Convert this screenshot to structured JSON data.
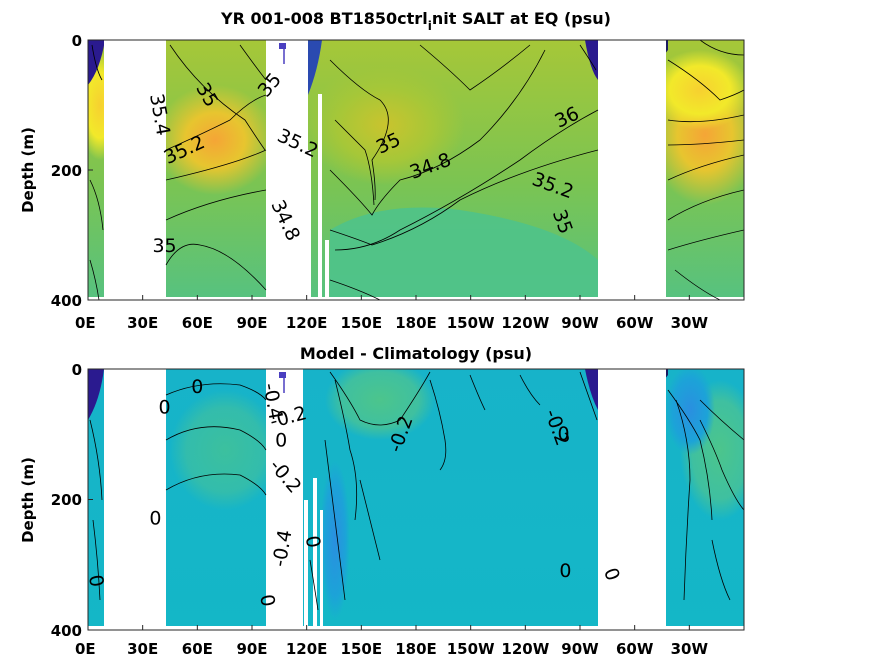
{
  "chart_data": [
    {
      "type": "heatmap",
      "title": "YR 001-008 BT1850ctrl",
      "title_sub": "i",
      "title_end": "nit SALT at EQ (psu)",
      "ylabel": "Depth (m)",
      "xlim": [
        0,
        360
      ],
      "ylim": [
        400,
        0
      ],
      "x_ticks": [
        "0E",
        "30E",
        "60E",
        "90E",
        "120E",
        "150E",
        "180E",
        "150W",
        "120W",
        "90W",
        "60W",
        "30W"
      ],
      "x_tick_values": [
        0,
        30,
        60,
        90,
        120,
        150,
        180,
        210,
        240,
        270,
        300,
        330
      ],
      "y_ticks": [
        "0",
        "200",
        "400"
      ],
      "y_tick_values": [
        0,
        200,
        400
      ],
      "contour_labels": [
        {
          "text": "35.4",
          "lon": 39,
          "depth": 115,
          "rot": 80
        },
        {
          "text": "35",
          "lon": 65,
          "depth": 85,
          "rot": 60
        },
        {
          "text": "35.2",
          "lon": 53,
          "depth": 170,
          "rot": -25
        },
        {
          "text": "35",
          "lon": 42,
          "depth": 318,
          "rot": 0
        },
        {
          "text": "35",
          "lon": 100,
          "depth": 70,
          "rot": -50
        },
        {
          "text": "35.2",
          "lon": 115,
          "depth": 160,
          "rot": 25
        },
        {
          "text": "35",
          "lon": 165,
          "depth": 160,
          "rot": -25
        },
        {
          "text": "34.8",
          "lon": 188,
          "depth": 195,
          "rot": -20
        },
        {
          "text": "34.8",
          "lon": 108,
          "depth": 278,
          "rot": 65
        },
        {
          "text": "36",
          "lon": 263,
          "depth": 120,
          "rot": -25
        },
        {
          "text": "35.2",
          "lon": 255,
          "depth": 225,
          "rot": 20
        },
        {
          "text": "35",
          "lon": 260,
          "depth": 280,
          "rot": 70
        }
      ]
    },
    {
      "type": "heatmap",
      "title": "Model - Climatology (psu)",
      "ylabel": "Depth (m)",
      "xlim": [
        0,
        360
      ],
      "ylim": [
        400,
        0
      ],
      "x_ticks": [
        "0E",
        "30E",
        "60E",
        "90E",
        "120E",
        "150E",
        "180E",
        "150W",
        "120W",
        "90W",
        "60W",
        "30W"
      ],
      "x_tick_values": [
        0,
        30,
        60,
        90,
        120,
        150,
        180,
        210,
        240,
        270,
        300,
        330
      ],
      "y_ticks": [
        "0",
        "200",
        "400"
      ],
      "y_tick_values": [
        0,
        200,
        400
      ],
      "contour_labels": [
        {
          "text": "0",
          "lon": 60,
          "depth": 28,
          "rot": 0
        },
        {
          "text": "0",
          "lon": 42,
          "depth": 60,
          "rot": 0
        },
        {
          "text": "0",
          "lon": 37,
          "depth": 230,
          "rot": 0
        },
        {
          "text": "0",
          "lon": 4,
          "depth": 325,
          "rot": 80
        },
        {
          "text": "-0.4",
          "lon": 101,
          "depth": 50,
          "rot": 80
        },
        {
          "text": "-0.2",
          "lon": 110,
          "depth": 75,
          "rot": -15
        },
        {
          "text": "0",
          "lon": 106,
          "depth": 110,
          "rot": 0
        },
        {
          "text": "-0.2",
          "lon": 108,
          "depth": 165,
          "rot": 50
        },
        {
          "text": "-0.4",
          "lon": 107,
          "depth": 275,
          "rot": -80
        },
        {
          "text": "0",
          "lon": 123,
          "depth": 265,
          "rot": 80
        },
        {
          "text": "0",
          "lon": 98,
          "depth": 355,
          "rot": 80
        },
        {
          "text": "-0.2",
          "lon": 172,
          "depth": 100,
          "rot": -70
        },
        {
          "text": "-0.2",
          "lon": 257,
          "depth": 90,
          "rot": 70
        },
        {
          "text": "0",
          "lon": 261,
          "depth": 100,
          "rot": 0
        },
        {
          "text": "0",
          "lon": 262,
          "depth": 310,
          "rot": 0
        },
        {
          "text": "0",
          "lon": 287,
          "depth": 315,
          "rot": 70
        }
      ]
    }
  ],
  "colors": {
    "panel1_background": "#7bc452",
    "panel2_background": "#17b5c6",
    "land": "#ffffff",
    "contour_line": "#000000",
    "fresh_core": "#2a1a8f",
    "high_salinity": "#f7e426"
  }
}
